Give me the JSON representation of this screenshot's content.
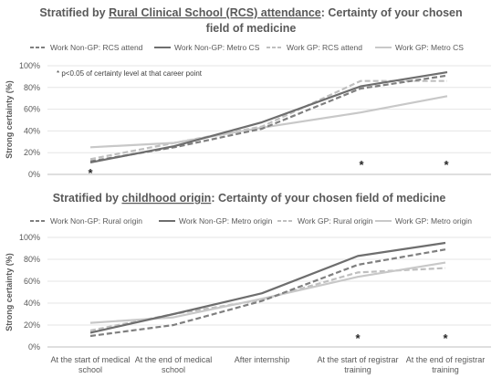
{
  "chart_data": [
    {
      "type": "line",
      "title_parts": [
        "Stratified by ",
        "Rural Clinical School (RCS) attendance",
        ": Certainty of your chosen"
      ],
      "title_line2": "field of medicine",
      "ylabel": "Strong certainty (%)",
      "ylim": [
        0,
        100
      ],
      "yticks": [
        "0%",
        "20%",
        "40%",
        "60%",
        "80%",
        "100%"
      ],
      "categories": [
        "At the start of medical school",
        "At the end of medical school",
        "After internship",
        "At the start of registrar training",
        "At the end of registrar training"
      ],
      "series": [
        {
          "name": "Work Non-GP: RCS attend",
          "values": [
            12,
            25,
            42,
            79,
            91
          ],
          "color": "#7f7f7f",
          "dash": "6,3"
        },
        {
          "name": "Work Non-GP: Metro CS",
          "values": [
            11,
            26,
            48,
            81,
            94
          ],
          "color": "#6e6e6e",
          "dash": ""
        },
        {
          "name": "Work GP: RCS attend",
          "values": [
            14,
            29,
            44,
            86,
            86
          ],
          "color": "#bfbfbf",
          "dash": "6,3"
        },
        {
          "name": "Work GP: Metro CS",
          "values": [
            25,
            29,
            43,
            57,
            72
          ],
          "color": "#c8c8c8",
          "dash": ""
        }
      ],
      "note": "* p<0.05 of certainty level at that career point",
      "star_marks": [
        "*",
        "*",
        "*"
      ]
    },
    {
      "type": "line",
      "title_parts": [
        "Stratified by ",
        "childhood origin",
        ": Certainty of your chosen field of medicine"
      ],
      "ylabel": "Strong certainty (%)",
      "ylim": [
        0,
        100
      ],
      "yticks": [
        "0%",
        "20%",
        "40%",
        "60%",
        "80%",
        "100%"
      ],
      "categories": [
        "At the start of medical school",
        "At the end of medical school",
        "After internship",
        "At the start of registrar training",
        "At the end of registrar training"
      ],
      "series": [
        {
          "name": "Work Non-GP: Rural origin",
          "values": [
            10,
            20,
            42,
            75,
            89
          ],
          "color": "#7f7f7f",
          "dash": "6,3"
        },
        {
          "name": "Work Non-GP: Metro origin",
          "values": [
            13,
            30,
            49,
            83,
            95
          ],
          "color": "#6e6e6e",
          "dash": ""
        },
        {
          "name": "Work GP: Rural origin",
          "values": [
            15,
            30,
            43,
            68,
            72
          ],
          "color": "#bfbfbf",
          "dash": "6,3"
        },
        {
          "name": "Work GP: Metro origin",
          "values": [
            22,
            27,
            44,
            64,
            77
          ],
          "color": "#c8c8c8",
          "dash": ""
        }
      ],
      "star_marks": [
        "*",
        "*"
      ]
    }
  ]
}
